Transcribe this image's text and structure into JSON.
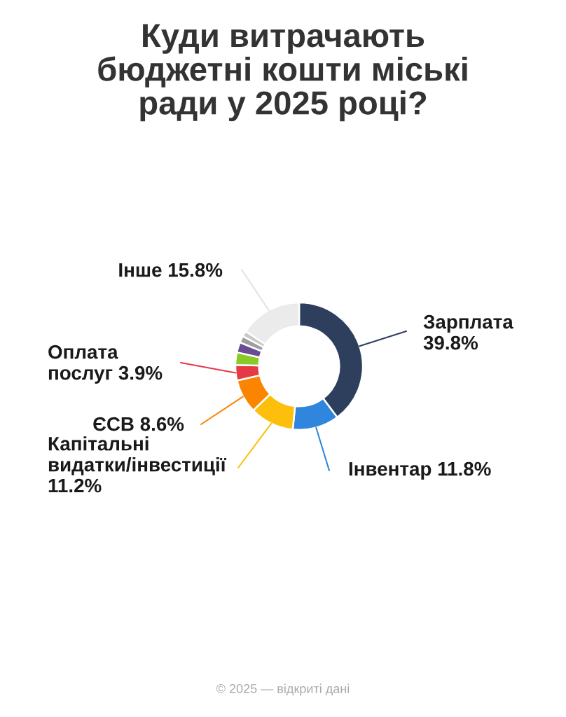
{
  "chart_data": {
    "type": "donut",
    "title": "Куди витрачають\nбюджетні кошти міські\nради у 2025 році?",
    "categories": [
      "Зарплата",
      "Інвентар",
      "Капітальні видатки/інвестиції",
      "ЄСВ",
      "Оплата послуг",
      null,
      null,
      null,
      null,
      "Інше"
    ],
    "values": [
      39.8,
      11.8,
      11.2,
      8.6,
      3.9,
      3.2,
      2.6,
      1.7,
      1.4,
      15.8
    ],
    "colors": [
      "#2e3f5e",
      "#2f86dc",
      "#fdbf0b",
      "#fb8500",
      "#e63946",
      "#8ac926",
      "#6a4c93",
      "#9e9e9e",
      "#c8c8c8",
      "#ebebeb"
    ],
    "value_labels": [
      "39.8%",
      "11.8%",
      "11.2%",
      "8.6%",
      "3.9%",
      null,
      null,
      null,
      null,
      "15.8%"
    ],
    "annotations": [
      "© 2025 — відкриті дані"
    ]
  }
}
